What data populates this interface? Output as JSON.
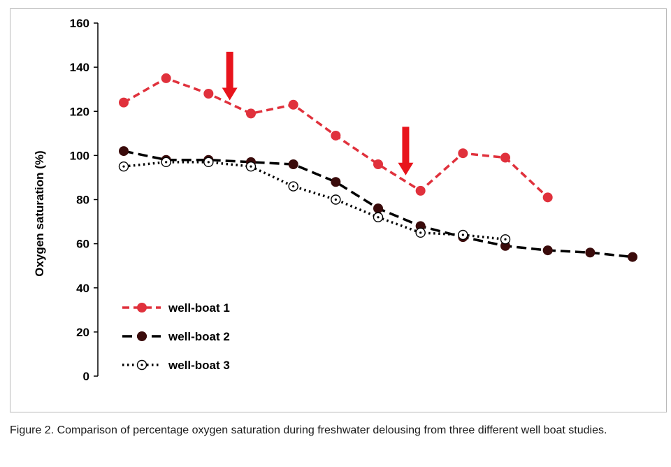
{
  "chart_data": {
    "type": "line",
    "title": "",
    "xlabel": "",
    "ylabel": "Oxygen saturation (%)",
    "ylim": [
      0,
      160
    ],
    "yticks": [
      0,
      20,
      40,
      60,
      80,
      100,
      120,
      140,
      160
    ],
    "x": [
      1,
      2,
      3,
      4,
      5,
      6,
      7,
      8,
      9,
      10,
      11,
      12,
      13
    ],
    "xlim": [
      1,
      13
    ],
    "grid": false,
    "legend_position": "bottom-left",
    "series": [
      {
        "name": "well-boat 1",
        "color": "#e0313c",
        "style": "dashed",
        "marker": "filled-circle",
        "x": [
          1,
          2,
          3,
          4,
          5,
          6,
          7,
          8,
          9,
          10,
          11
        ],
        "values": [
          124,
          135,
          128,
          119,
          123,
          109,
          96,
          84,
          101,
          99,
          81
        ]
      },
      {
        "name": "well-boat 2",
        "color": "#000000",
        "marker_fill": "#3a0b0b",
        "style": "long-dashed",
        "marker": "filled-circle",
        "x": [
          1,
          2,
          3,
          4,
          5,
          6,
          7,
          8,
          9,
          10,
          11,
          12,
          13
        ],
        "values": [
          102,
          98,
          98,
          97,
          96,
          88,
          76,
          68,
          63,
          59,
          57,
          56,
          54
        ]
      },
      {
        "name": "well-boat 3",
        "color": "#000000",
        "style": "dotted",
        "marker": "open-circle-dot",
        "x": [
          1,
          2,
          3,
          4,
          5,
          6,
          7,
          8,
          9,
          10
        ],
        "values": [
          95,
          97,
          97,
          95,
          86,
          80,
          72,
          65,
          64,
          62
        ]
      }
    ],
    "annotations": [
      {
        "type": "down-arrow",
        "color": "#e8141c",
        "x": 3.5,
        "y_tip": 125,
        "y_tail": 147
      },
      {
        "type": "down-arrow",
        "color": "#e8141c",
        "x": 7.65,
        "y_tip": 91,
        "y_tail": 113
      }
    ]
  },
  "caption": "Figure 2. Comparison of percentage oxygen saturation during freshwater delousing from three different well boat studies."
}
